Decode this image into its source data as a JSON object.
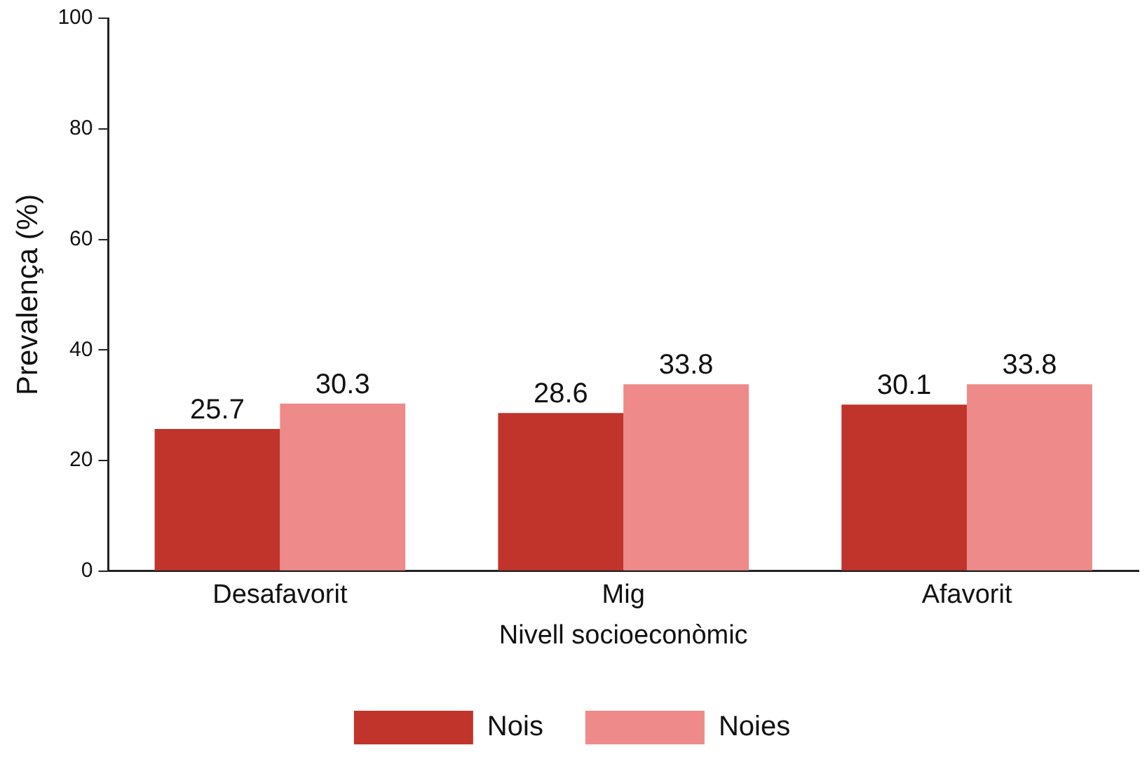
{
  "chart_data": {
    "type": "bar",
    "xlabel": "Nivell socioeconòmic",
    "ylabel": "Prevalença (%)",
    "categories": [
      "Desafavorit",
      "Mig",
      "Afavorit"
    ],
    "series": [
      {
        "name": "Nois",
        "color": "#c0342b",
        "values": [
          25.7,
          28.6,
          30.1
        ]
      },
      {
        "name": "Noies",
        "color": "#ef8a8a",
        "values": [
          30.3,
          33.8,
          33.8
        ]
      }
    ],
    "ylim": [
      0,
      100
    ],
    "yticks": [
      0,
      20,
      40,
      60,
      80,
      100
    ],
    "grid": false,
    "legend": "bottom",
    "data_labels": true
  }
}
